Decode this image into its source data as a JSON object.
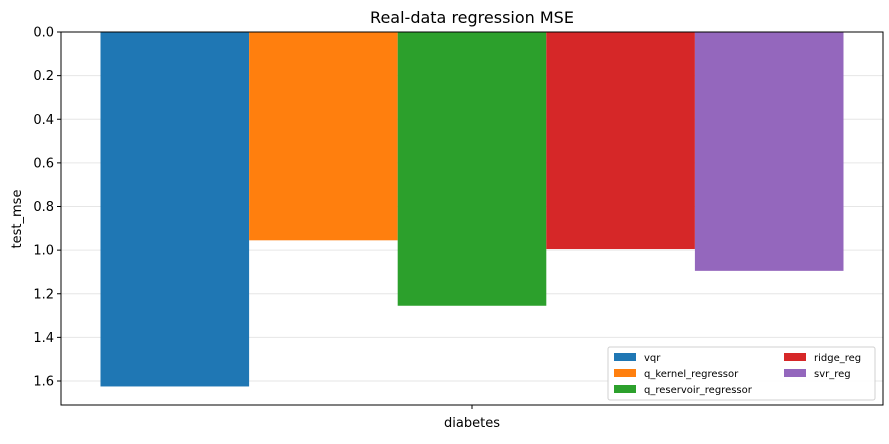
{
  "chart_data": {
    "type": "bar",
    "title": "Real-data regression MSE",
    "xlabel": "",
    "ylabel": "test_mse",
    "y_inverted": true,
    "ylim": [
      0,
      1.71
    ],
    "yticks": [
      0.0,
      0.2,
      0.4,
      0.6,
      0.8,
      1.0,
      1.2,
      1.4,
      1.6
    ],
    "ytick_labels": [
      "0.0",
      "0.2",
      "0.4",
      "0.6",
      "0.8",
      "1.0",
      "1.2",
      "1.4",
      "1.6"
    ],
    "grid": "horizontal",
    "categories": [
      "diabetes"
    ],
    "legend_position": "bottom-right",
    "series": [
      {
        "name": "vqr",
        "values": [
          1.625
        ],
        "color": "#1f77b4"
      },
      {
        "name": "q_kernel_regressor",
        "values": [
          0.955
        ],
        "color": "#ff7f0e"
      },
      {
        "name": "q_reservoir_regressor",
        "values": [
          1.255
        ],
        "color": "#2ca02c"
      },
      {
        "name": "ridge_reg",
        "values": [
          0.995
        ],
        "color": "#d62728"
      },
      {
        "name": "svr_reg",
        "values": [
          1.095
        ],
        "color": "#9467bd"
      }
    ]
  }
}
